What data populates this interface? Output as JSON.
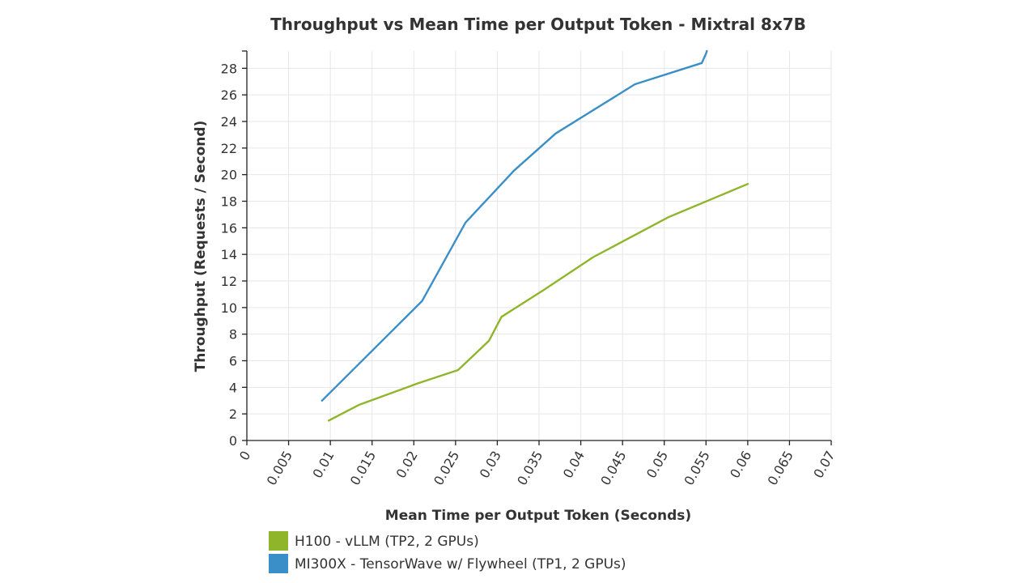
{
  "chart_data": {
    "type": "line",
    "title": "Throughput vs Mean Time per Output Token - Mixtral 8x7B",
    "xlabel": "Mean Time per Output Token (Seconds)",
    "ylabel": "Throughput (Requests / Second)",
    "xlim": [
      0,
      0.07
    ],
    "ylim": [
      0,
      29.3
    ],
    "x_ticks": [
      "0",
      "0.005",
      "0.01",
      "0.015",
      "0.02",
      "0.025",
      "0.03",
      "0.035",
      "0.04",
      "0.045",
      "0.05",
      "0.055",
      "0.06",
      "0.065",
      "0.07"
    ],
    "y_ticks": [
      "0",
      "2",
      "4",
      "6",
      "8",
      "10",
      "12",
      "14",
      "16",
      "18",
      "20",
      "22",
      "24",
      "26",
      "28"
    ],
    "grid": true,
    "legend_position": "bottom-left",
    "series": [
      {
        "name": "H100 - vLLM (TP2, 2 GPUs)",
        "color": "#8fb52a",
        "x": [
          0.0098,
          0.0135,
          0.0205,
          0.0253,
          0.029,
          0.0305,
          0.0355,
          0.0415,
          0.0505,
          0.06
        ],
        "y": [
          1.5,
          2.7,
          4.3,
          5.3,
          7.5,
          9.3,
          11.3,
          13.8,
          16.8,
          19.3
        ]
      },
      {
        "name": "MI300X - TensorWave w/ Flywheel (TP1, 2 GPUs)",
        "color": "#3a8fc8",
        "x": [
          0.009,
          0.021,
          0.0262,
          0.032,
          0.037,
          0.0465,
          0.0545,
          0.055,
          0.0551
        ],
        "y": [
          3.0,
          10.5,
          16.4,
          20.3,
          23.1,
          26.8,
          28.4,
          29.1,
          29.3
        ]
      }
    ]
  }
}
